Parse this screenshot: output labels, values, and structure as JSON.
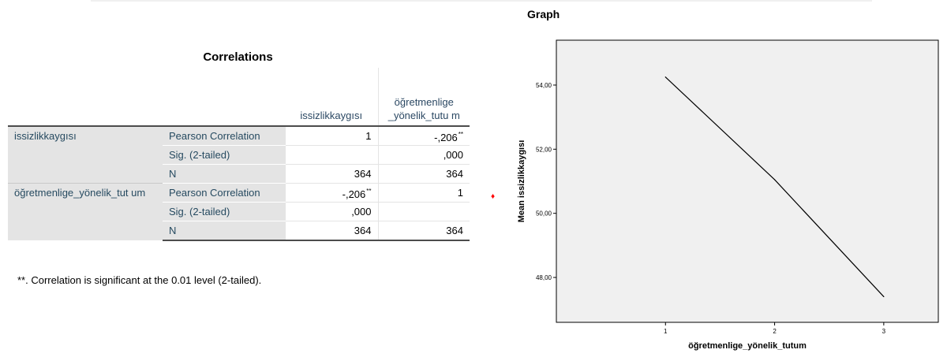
{
  "table": {
    "title": "Correlations",
    "col_headers": [
      "issizlikkaygısı",
      "öğretmenlige _yönelik_tutu m"
    ],
    "rows": [
      {
        "variable": "issizlikkaygısı",
        "stats": [
          {
            "label": "Pearson Correlation",
            "v1": "1",
            "v1_sup": "",
            "v2": "-,206",
            "v2_sup": "**"
          },
          {
            "label": "Sig. (2-tailed)",
            "v1": "",
            "v1_sup": "",
            "v2": ",000",
            "v2_sup": ""
          },
          {
            "label": "N",
            "v1": "364",
            "v1_sup": "",
            "v2": "364",
            "v2_sup": ""
          }
        ]
      },
      {
        "variable": "öğretmenlige_yönelik_tut um",
        "stats": [
          {
            "label": "Pearson Correlation",
            "v1": "-,206",
            "v1_sup": "**",
            "v2": "1",
            "v2_sup": ""
          },
          {
            "label": "Sig. (2-tailed)",
            "v1": ",000",
            "v1_sup": "",
            "v2": "",
            "v2_sup": ""
          },
          {
            "label": "N",
            "v1": "364",
            "v1_sup": "",
            "v2": "364",
            "v2_sup": ""
          }
        ]
      }
    ],
    "footnote": "**. Correlation is significant at the 0.01 level (2-tailed)."
  },
  "graph": {
    "title": "Graph",
    "marker_color": "#ff0000"
  },
  "chart_data": {
    "type": "line",
    "x": [
      1,
      2,
      3
    ],
    "xticks": [
      "1",
      "2",
      "3"
    ],
    "y": [
      54.25,
      51.05,
      47.4
    ],
    "yticks": [
      48,
      50,
      52,
      54
    ],
    "ytick_labels": [
      "48,00",
      "50,00",
      "52,00",
      "54,00"
    ],
    "ylim": [
      46.6,
      55.4
    ],
    "xlim": [
      0.0,
      3.5
    ],
    "xlabel": "öğretmenlige_yönelik_tutum",
    "ylabel": "Mean issizlikkaygısı",
    "plot_background": "#f0f0f0",
    "line_color": "#000000",
    "grid": false
  }
}
